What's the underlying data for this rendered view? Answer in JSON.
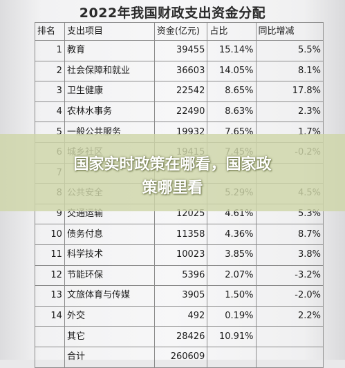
{
  "document": {
    "title": "2022年我国财政支出资金分配",
    "headers": {
      "rank": "排名",
      "item": "支出项目",
      "amount": "资金(亿元)",
      "share": "占比",
      "yoy": "同比增减"
    },
    "rows": [
      {
        "rank": "1",
        "item": "教育",
        "amount": "39455",
        "share": "15.14%",
        "yoy": "5.5%"
      },
      {
        "rank": "2",
        "item": "社会保障和就业",
        "amount": "36603",
        "share": "14.05%",
        "yoy": "8.1%"
      },
      {
        "rank": "3",
        "item": "卫生健康",
        "amount": "22542",
        "share": "8.65%",
        "yoy": "17.8%"
      },
      {
        "rank": "4",
        "item": "农林水事务",
        "amount": "22490",
        "share": "8.63%",
        "yoy": "2.3%"
      },
      {
        "rank": "5",
        "item": "一般公共服务",
        "amount": "19932",
        "share": "7.65%",
        "yoy": "1.7%"
      },
      {
        "rank": "6",
        "item": "城乡社区",
        "amount": "19415",
        "share": "7.45%",
        "yoy": "-0.2%"
      },
      {
        "rank": "7",
        "item": "",
        "amount": "",
        "share": "",
        "yoy": ""
      },
      {
        "rank": "8",
        "item": "公共安全",
        "amount": "",
        "share": "5.29%",
        "yoy": "4.5%"
      },
      {
        "rank": "9",
        "item": "交通运输",
        "amount": "12025",
        "share": "4.61%",
        "yoy": "5.3%"
      },
      {
        "rank": "10",
        "item": "债务付息",
        "amount": "11358",
        "share": "4.36%",
        "yoy": "8.7%"
      },
      {
        "rank": "11",
        "item": "科学技术",
        "amount": "10023",
        "share": "3.85%",
        "yoy": "3.8%"
      },
      {
        "rank": "12",
        "item": "节能环保",
        "amount": "5396",
        "share": "2.07%",
        "yoy": "-3.2%"
      },
      {
        "rank": "13",
        "item": "文旅体育与传媒",
        "amount": "3905",
        "share": "1.50%",
        "yoy": "-2.0%"
      },
      {
        "rank": "14",
        "item": "外交",
        "amount": "492",
        "share": "0.19%",
        "yoy": "2.2%"
      },
      {
        "rank": "",
        "item": "其它",
        "amount": "28426",
        "share": "10.91%",
        "yoy": ""
      },
      {
        "rank": "",
        "item": "合计",
        "amount": "260609",
        "share": "",
        "yoy": ""
      }
    ]
  },
  "overlay": {
    "line1": "国家实时政策在哪看，国家政",
    "line2": "策哪里看",
    "band_color": "#ced6a8"
  }
}
